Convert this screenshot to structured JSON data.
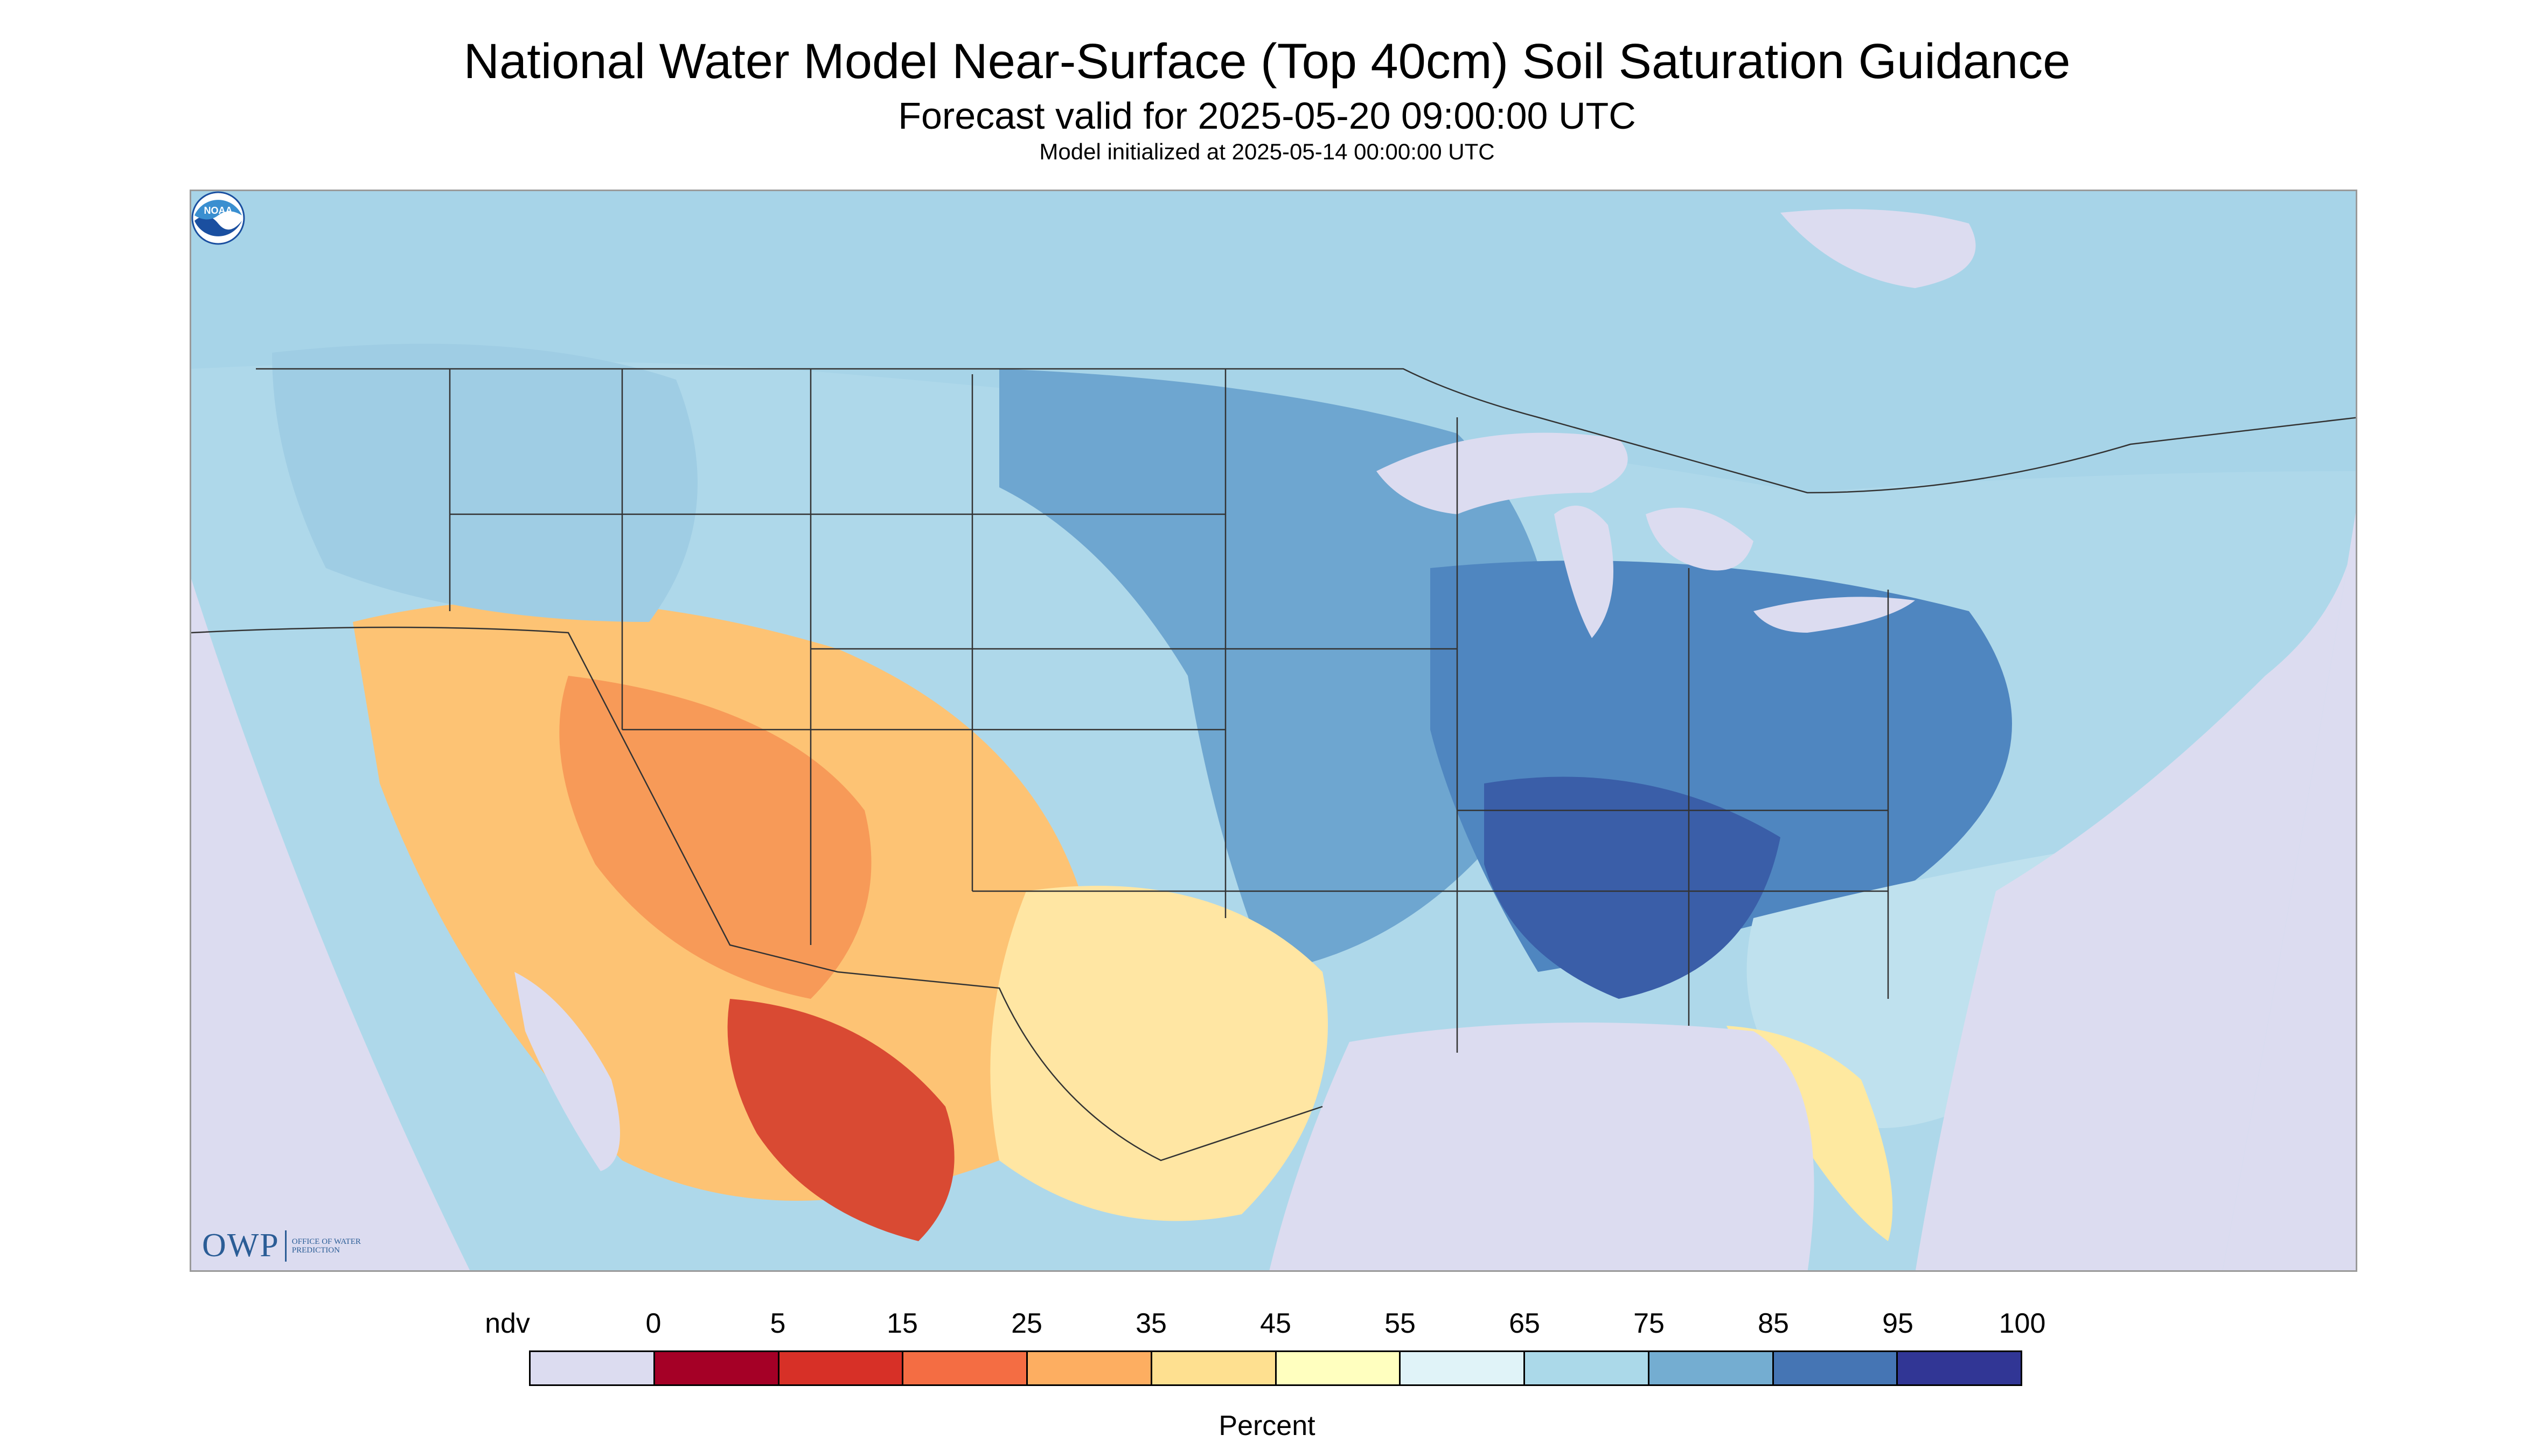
{
  "title": "National Water Model Near-Surface (Top 40cm) Soil Saturation Guidance",
  "subtitle": "Forecast valid for 2025-05-20 09:00:00 UTC",
  "init_line": "Model initialized at 2025-05-14 00:00:00 UTC",
  "logos": {
    "owp_text": "OWP",
    "owp_subtext": "OFFICE OF WATER PREDICTION",
    "noaa_text": "NOAA"
  },
  "legend": {
    "unit": "Percent",
    "tick_labels": [
      "ndv",
      "0",
      "5",
      "15",
      "25",
      "35",
      "45",
      "55",
      "65",
      "75",
      "85",
      "95",
      "100"
    ],
    "colors": [
      "#dcdcf0",
      "#a50026",
      "#d73027",
      "#f46d43",
      "#fdae61",
      "#fee090",
      "#ffffbf",
      "#e0f3f8",
      "#abd9e9",
      "#74add1",
      "#4575b4",
      "#313695"
    ],
    "categories": [
      "no data value",
      "0–5",
      "5–15",
      "15–25",
      "25–35",
      "35–45",
      "45–55",
      "55–65",
      "65–75",
      "75–85",
      "85–95",
      "95–100"
    ]
  },
  "colors": {
    "map_background": "#dcdcf0",
    "borders": "#333333",
    "owp_brand": "#2b5d96",
    "noaa_brand": "#1a4fa0"
  }
}
